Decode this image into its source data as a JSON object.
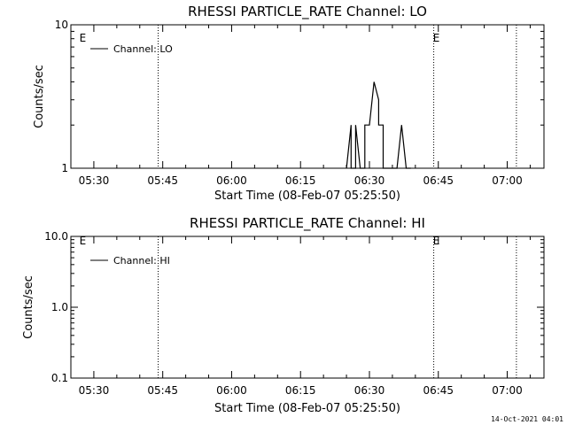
{
  "chart_data": [
    {
      "type": "line",
      "title": "RHESSI PARTICLE_RATE Channel: LO",
      "xlabel": "Start Time (08-Feb-07 05:25:50)",
      "ylabel": "Counts/sec",
      "y_scale": "log",
      "ylim": [
        1,
        10
      ],
      "y_ticks": [
        {
          "value": 1,
          "label": "1"
        },
        {
          "value": 10,
          "label": "10"
        }
      ],
      "xlim": [
        "05:25",
        "07:08"
      ],
      "x_ticks": [
        "05:30",
        "05:45",
        "06:00",
        "06:15",
        "06:30",
        "06:45",
        "07:00"
      ],
      "legend": {
        "placement": "top-left",
        "entries": [
          "Channel: LO"
        ]
      },
      "markers": [
        {
          "time": "05:27",
          "label": "E"
        },
        {
          "time": "06:44",
          "label": "E"
        }
      ],
      "vlines": [
        "05:44",
        "06:44",
        "07:02"
      ],
      "series": [
        {
          "name": "Channel: LO",
          "x": [
            "06:25",
            "06:26",
            "06:26",
            "06:27",
            "06:27",
            "06:28",
            "06:29",
            "06:29",
            "06:30",
            "06:31",
            "06:31",
            "06:32",
            "06:32",
            "06:33",
            "06:33",
            "06:34",
            "06:36",
            "06:37",
            "06:38",
            "06:39"
          ],
          "y": [
            1,
            2,
            1,
            1,
            2,
            1,
            1,
            2,
            2,
            4,
            4,
            3,
            2,
            2,
            1,
            1,
            1,
            2,
            1,
            1
          ]
        }
      ]
    },
    {
      "type": "line",
      "title": "RHESSI PARTICLE_RATE Channel: HI",
      "xlabel": "Start Time (08-Feb-07 05:25:50)",
      "ylabel": "Counts/sec",
      "y_scale": "log",
      "ylim": [
        0.1,
        10
      ],
      "y_ticks": [
        {
          "value": 0.1,
          "label": "0.1"
        },
        {
          "value": 1,
          "label": "1.0"
        },
        {
          "value": 10,
          "label": "10.0"
        }
      ],
      "xlim": [
        "05:25",
        "07:08"
      ],
      "x_ticks": [
        "05:30",
        "05:45",
        "06:00",
        "06:15",
        "06:30",
        "06:45",
        "07:00"
      ],
      "legend": {
        "placement": "top-left",
        "entries": [
          "Channel: HI"
        ]
      },
      "markers": [
        {
          "time": "05:27",
          "label": "E"
        },
        {
          "time": "06:44",
          "label": "E"
        }
      ],
      "vlines": [
        "05:44",
        "06:44",
        "07:02"
      ],
      "series": [
        {
          "name": "Channel: HI",
          "x": [],
          "y": []
        }
      ]
    }
  ],
  "footer": "14-Oct-2021 04:01"
}
